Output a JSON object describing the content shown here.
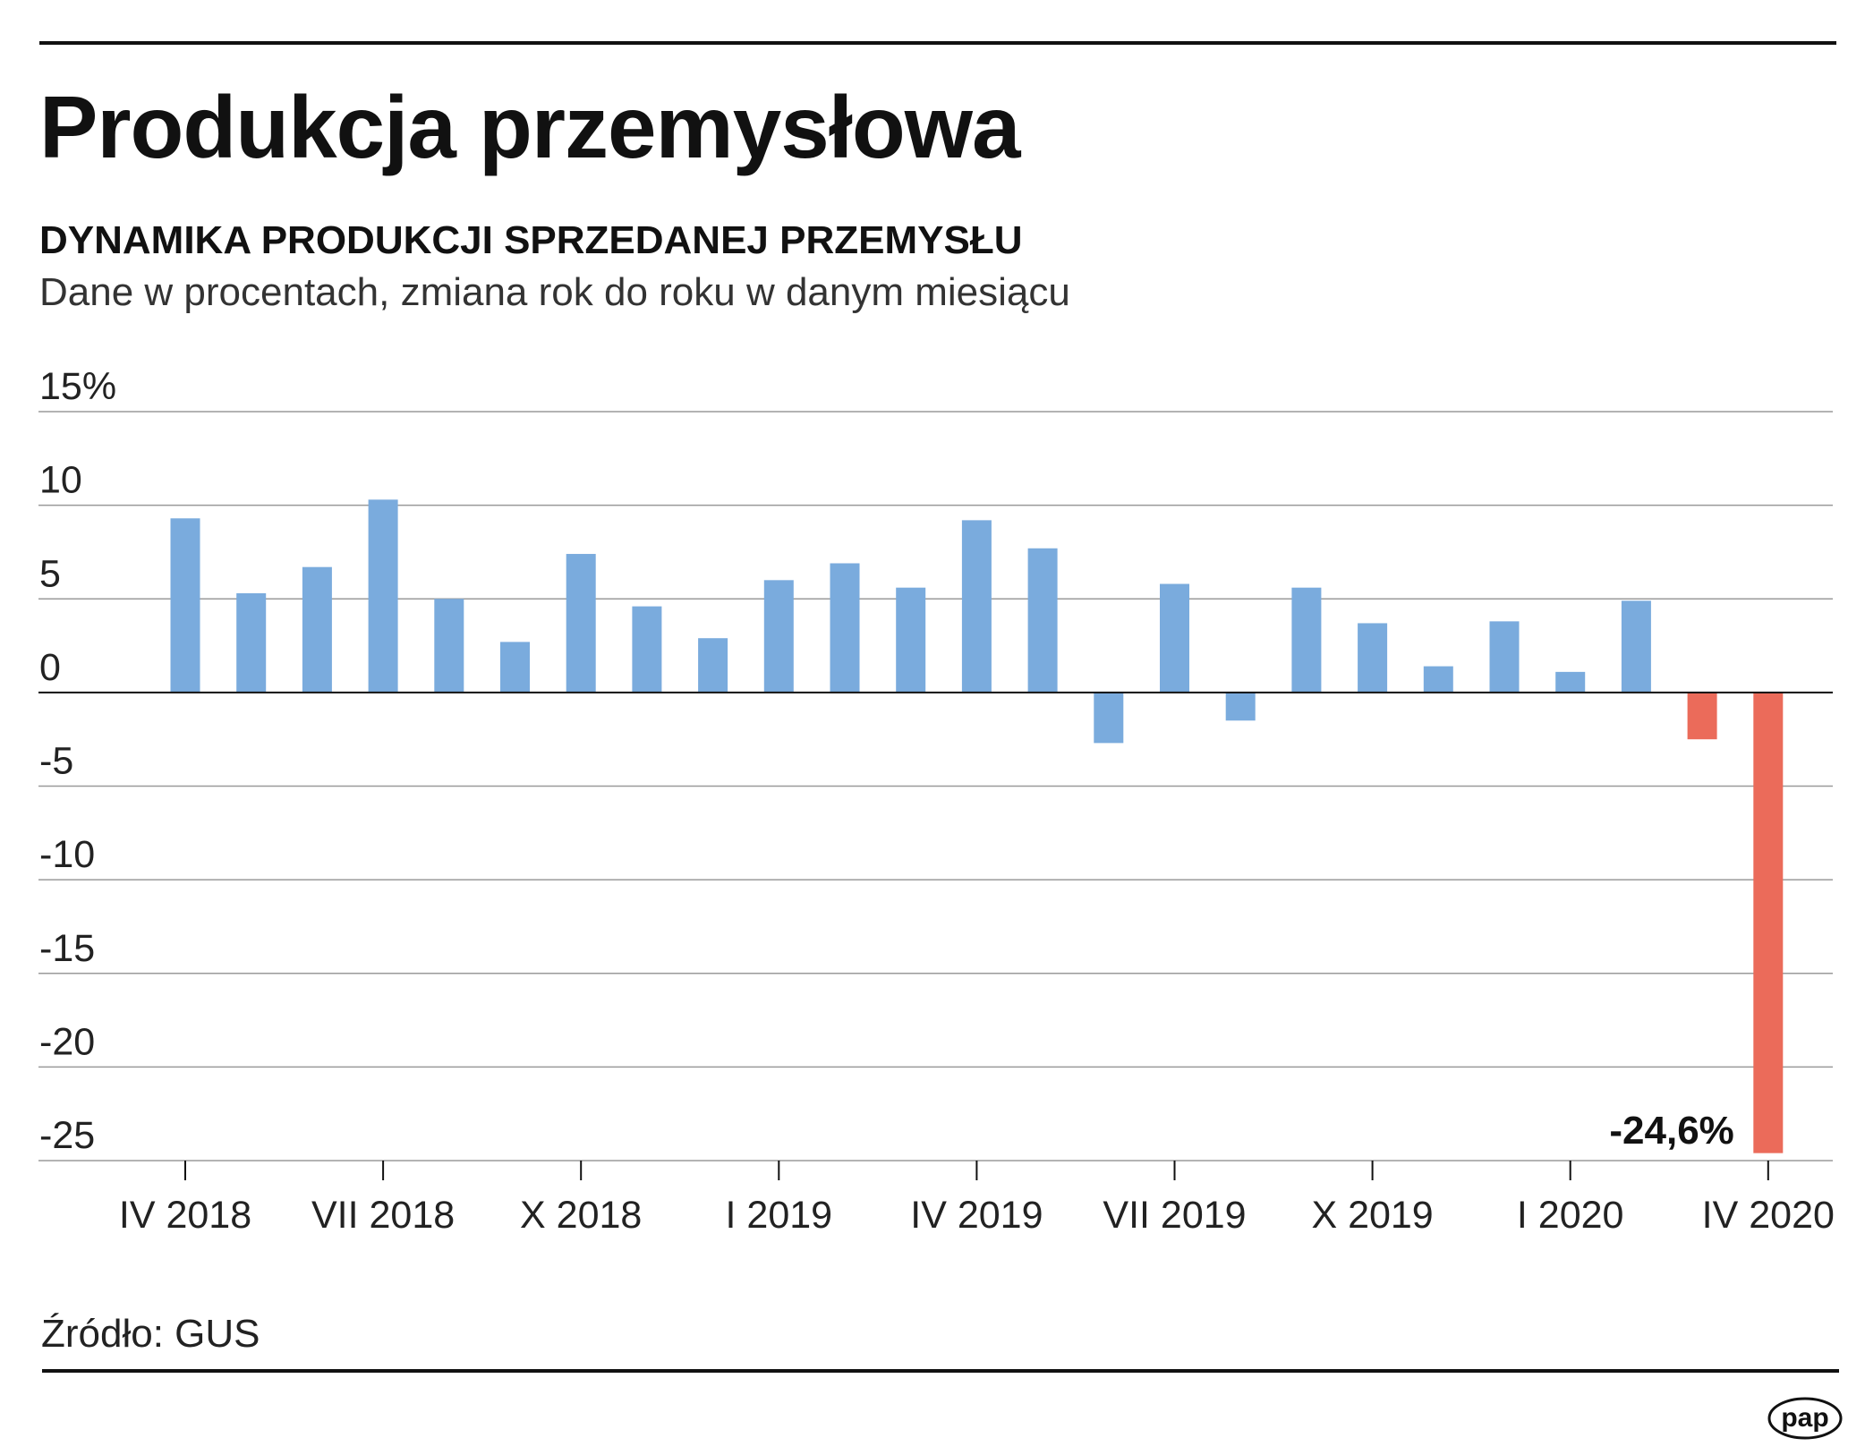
{
  "title": "Produkcja przemysłowa",
  "subtitle": "DYNAMIKA PRODUKCJI SPRZEDANEJ PRZEMYSŁU",
  "description": "Dane w procentach, zmiana rok do roku w danym miesiącu",
  "source": "Źródło: GUS",
  "logo_text": "pap",
  "chart_data": {
    "type": "bar",
    "title": "DYNAMIKA PRODUKCJI SPRZEDANEJ PRZEMYSŁU",
    "categories": [
      "IV 2018",
      "V 2018",
      "VI 2018",
      "VII 2018",
      "VIII 2018",
      "IX 2018",
      "X 2018",
      "XI 2018",
      "XII 2018",
      "I 2019",
      "II 2019",
      "III 2019",
      "IV 2019",
      "V 2019",
      "VI 2019",
      "VII 2019",
      "VIII 2019",
      "IX 2019",
      "X 2019",
      "XI 2019",
      "XII 2019",
      "I 2020",
      "II 2020",
      "III 2020",
      "IV 2020"
    ],
    "values": [
      9.3,
      5.3,
      6.7,
      10.3,
      5.0,
      2.7,
      7.4,
      4.6,
      2.9,
      6.0,
      6.9,
      5.6,
      9.2,
      7.7,
      -2.7,
      5.8,
      -1.5,
      5.6,
      3.7,
      1.4,
      3.8,
      1.1,
      4.9,
      -2.5,
      -24.6
    ],
    "highlight_from_index": 23,
    "colors": {
      "default": "#7aabdd",
      "highlight": "#eb6b5a"
    },
    "ylim": [
      -25,
      15
    ],
    "yticks": [
      15,
      10,
      5,
      0,
      -5,
      -10,
      -15,
      -20,
      -25
    ],
    "ytick_labels": [
      "15%",
      "10",
      "5",
      "0",
      "-5",
      "-10",
      "-15",
      "-20",
      "-25"
    ],
    "xtick_labels": [
      {
        "index": 0,
        "label": "IV 2018"
      },
      {
        "index": 3,
        "label": "VII 2018"
      },
      {
        "index": 6,
        "label": "X 2018"
      },
      {
        "index": 9,
        "label": "I 2019"
      },
      {
        "index": 12,
        "label": "IV 2019"
      },
      {
        "index": 15,
        "label": "VII 2019"
      },
      {
        "index": 18,
        "label": "X 2019"
      },
      {
        "index": 21,
        "label": "I 2020"
      },
      {
        "index": 24,
        "label": "IV 2020"
      }
    ],
    "annotation": {
      "index": 24,
      "text": "-24,6%"
    },
    "grid": true,
    "xlabel": "",
    "ylabel": ""
  }
}
